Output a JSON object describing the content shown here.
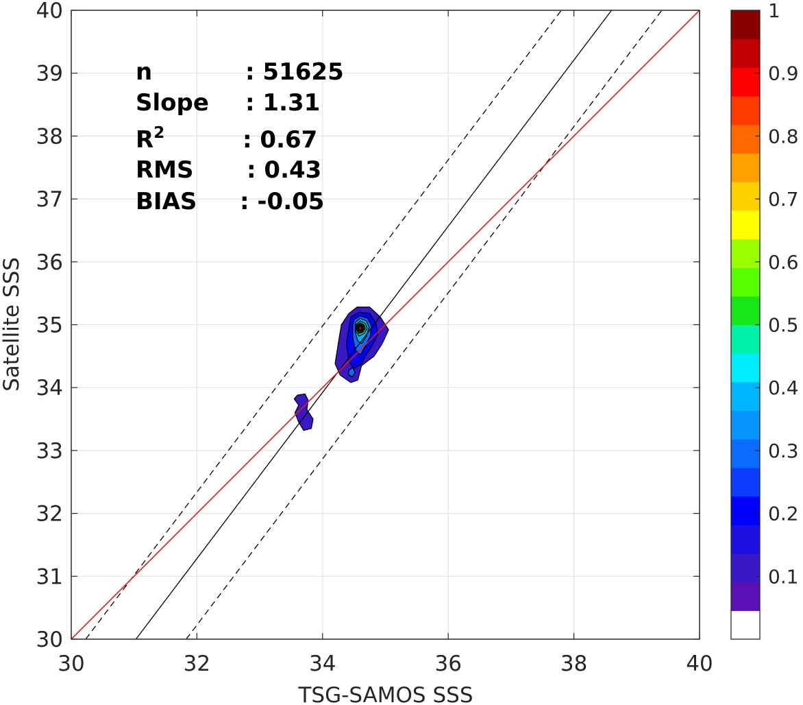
{
  "chart_data": {
    "type": "contour",
    "xlabel": "TSG-SAMOS SSS",
    "ylabel": "Satellite SSS",
    "xlim": [
      30,
      40
    ],
    "ylim": [
      30,
      40
    ],
    "xticks": [
      "30",
      "32",
      "34",
      "36",
      "38",
      "40"
    ],
    "yticks": [
      "30",
      "31",
      "32",
      "33",
      "34",
      "35",
      "36",
      "37",
      "38",
      "39",
      "40"
    ],
    "grid": true,
    "stats": [
      {
        "label": "n",
        "value": ": 51625"
      },
      {
        "label": "Slope",
        "value": ": 1.31"
      },
      {
        "label": "R",
        "sup": "2",
        "value": ": 0.67"
      },
      {
        "label": "RMS",
        "value": ": 0.43"
      },
      {
        "label": "BIAS",
        "value": ": -0.05"
      }
    ],
    "lines": {
      "one_to_one": {
        "color": "#e41a1c",
        "points": [
          [
            30,
            30
          ],
          [
            40,
            40
          ]
        ]
      },
      "fit": {
        "color": "#000000",
        "points": [
          [
            31.03,
            30
          ],
          [
            38.6,
            40
          ]
        ]
      },
      "fit_upper": {
        "color": "#000000",
        "dash": true,
        "points": [
          [
            30.23,
            30
          ],
          [
            37.8,
            40
          ]
        ]
      },
      "fit_lower": {
        "color": "#000000",
        "dash": true,
        "points": [
          [
            31.83,
            30
          ],
          [
            39.4,
            40
          ]
        ]
      }
    },
    "density_peak": {
      "x": 34.6,
      "y": 34.95,
      "value": 1.0
    },
    "contours": [
      {
        "level": 0.05,
        "color": "#3a18c8",
        "polygons": [
          [
            [
              34.42,
              35.18
            ],
            [
              34.55,
              35.28
            ],
            [
              34.75,
              35.28
            ],
            [
              34.92,
              35.12
            ],
            [
              35.05,
              34.92
            ],
            [
              34.95,
              34.7
            ],
            [
              34.82,
              34.5
            ],
            [
              34.62,
              34.35
            ],
            [
              34.56,
              34.12
            ],
            [
              34.45,
              34.08
            ],
            [
              34.28,
              34.2
            ],
            [
              34.2,
              34.38
            ],
            [
              34.25,
              34.7
            ],
            [
              34.3,
              35.0
            ]
          ],
          [
            [
              33.6,
              33.88
            ],
            [
              33.72,
              33.9
            ],
            [
              33.77,
              33.8
            ],
            [
              33.75,
              33.65
            ],
            [
              33.85,
              33.5
            ],
            [
              33.82,
              33.35
            ],
            [
              33.7,
              33.32
            ],
            [
              33.62,
              33.45
            ],
            [
              33.56,
              33.6
            ],
            [
              33.62,
              33.72
            ],
            [
              33.55,
              33.82
            ]
          ]
        ]
      },
      {
        "level": 0.1,
        "color": "#0000ff",
        "polygons": [
          [
            [
              34.45,
              35.12
            ],
            [
              34.58,
              35.2
            ],
            [
              34.75,
              35.18
            ],
            [
              34.85,
              35.02
            ],
            [
              34.88,
              34.85
            ],
            [
              34.78,
              34.65
            ],
            [
              34.68,
              34.5
            ],
            [
              34.62,
              34.38
            ],
            [
              34.5,
              34.3
            ],
            [
              34.42,
              34.42
            ],
            [
              34.38,
              34.7
            ],
            [
              34.42,
              34.95
            ]
          ]
        ]
      },
      {
        "level": 0.2,
        "color": "#0b6cff",
        "polygons": [
          [
            [
              34.5,
              35.08
            ],
            [
              34.6,
              35.14
            ],
            [
              34.72,
              35.1
            ],
            [
              34.78,
              34.98
            ],
            [
              34.76,
              34.82
            ],
            [
              34.68,
              34.66
            ],
            [
              34.6,
              34.52
            ],
            [
              34.52,
              34.6
            ],
            [
              34.48,
              34.8
            ],
            [
              34.48,
              34.98
            ]
          ],
          [
            [
              34.42,
              34.28
            ],
            [
              34.48,
              34.32
            ],
            [
              34.52,
              34.24
            ],
            [
              34.47,
              34.17
            ],
            [
              34.41,
              34.21
            ]
          ]
        ]
      },
      {
        "level": 0.3,
        "color": "#00b4ff",
        "polygons": [
          [
            [
              34.52,
              35.04
            ],
            [
              34.6,
              35.1
            ],
            [
              34.7,
              35.06
            ],
            [
              34.74,
              34.96
            ],
            [
              34.7,
              34.82
            ],
            [
              34.62,
              34.7
            ],
            [
              34.56,
              34.74
            ],
            [
              34.52,
              34.88
            ]
          ]
        ]
      },
      {
        "level": 0.4,
        "color": "#00f2a8",
        "polygons": [
          [
            [
              34.53,
              35.0
            ],
            [
              34.6,
              35.06
            ],
            [
              34.68,
              35.02
            ],
            [
              34.71,
              34.94
            ],
            [
              34.66,
              34.86
            ],
            [
              34.58,
              34.82
            ],
            [
              34.53,
              34.9
            ]
          ]
        ]
      },
      {
        "level": 0.5,
        "color": "#19e619",
        "polygons": [
          [
            [
              34.54,
              34.99
            ],
            [
              34.6,
              35.03
            ],
            [
              34.66,
              35.0
            ],
            [
              34.68,
              34.94
            ],
            [
              34.64,
              34.88
            ],
            [
              34.58,
              34.86
            ],
            [
              34.54,
              34.92
            ]
          ]
        ]
      },
      {
        "level": 0.6,
        "color": "#ccff00",
        "polygons": [
          [
            [
              34.55,
              34.98
            ],
            [
              34.6,
              35.01
            ],
            [
              34.65,
              34.99
            ],
            [
              34.66,
              34.94
            ],
            [
              34.63,
              34.89
            ],
            [
              34.58,
              34.88
            ],
            [
              34.55,
              34.92
            ]
          ]
        ]
      },
      {
        "level": 0.7,
        "color": "#ffd000",
        "polygons": [
          [
            [
              34.56,
              34.97
            ],
            [
              34.6,
              35.0
            ],
            [
              34.64,
              34.98
            ],
            [
              34.65,
              34.94
            ],
            [
              34.62,
              34.9
            ],
            [
              34.58,
              34.9
            ],
            [
              34.56,
              34.93
            ]
          ]
        ]
      },
      {
        "level": 0.8,
        "color": "#ff6a00",
        "polygons": [
          [
            [
              34.57,
              34.96
            ],
            [
              34.6,
              34.99
            ],
            [
              34.63,
              34.97
            ],
            [
              34.64,
              34.94
            ],
            [
              34.61,
              34.91
            ],
            [
              34.58,
              34.91
            ],
            [
              34.57,
              34.93
            ]
          ]
        ]
      },
      {
        "level": 0.9,
        "color": "#e00000",
        "polygons": [
          [
            [
              34.58,
              34.96
            ],
            [
              34.6,
              34.98
            ],
            [
              34.62,
              34.96
            ],
            [
              34.62,
              34.93
            ],
            [
              34.6,
              34.92
            ],
            [
              34.58,
              34.93
            ]
          ]
        ]
      }
    ],
    "colorbar": {
      "min": 0,
      "max": 1,
      "ticks": [
        "0.1",
        "0.2",
        "0.3",
        "0.4",
        "0.5",
        "0.6",
        "0.7",
        "0.8",
        "0.9",
        "1"
      ],
      "colors": [
        "#ffffff",
        "#5a10b4",
        "#3a18c8",
        "#1b10e0",
        "#0000ff",
        "#0b3cff",
        "#0b6cff",
        "#0a94ff",
        "#00b4ff",
        "#00ecff",
        "#00f2a8",
        "#19e619",
        "#58ff00",
        "#99ff00",
        "#ffff00",
        "#ffd000",
        "#ffa000",
        "#ff6a00",
        "#ff3a00",
        "#ff0000",
        "#c00000",
        "#8a0000"
      ]
    }
  }
}
